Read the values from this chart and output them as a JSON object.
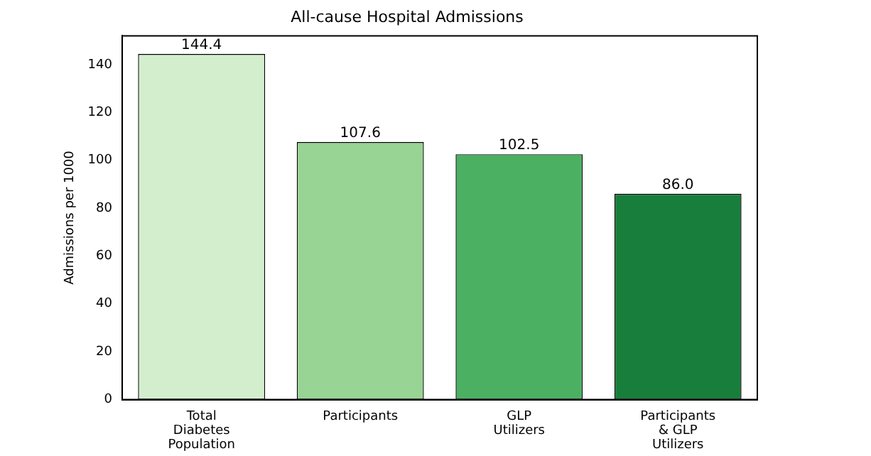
{
  "chart_data": {
    "type": "bar",
    "title": "All-cause Hospital Admissions",
    "ylabel": "Admissions per 1000",
    "categories": [
      "Total Diabetes Population",
      "Participants",
      "GLP Utilizers",
      "Participants & GLP Utilizers"
    ],
    "values": [
      144.4,
      107.6,
      102.5,
      86.0
    ],
    "colors": [
      "#d3eecd",
      "#98d493",
      "#4bb062",
      "#187e3b"
    ],
    "value_labels": [
      "144.4",
      "107.6",
      "102.5",
      "86.0"
    ],
    "ylim": [
      0,
      152
    ],
    "yticks": [
      0,
      20,
      40,
      60,
      80,
      100,
      120,
      140
    ],
    "grid": false,
    "legend": false
  }
}
